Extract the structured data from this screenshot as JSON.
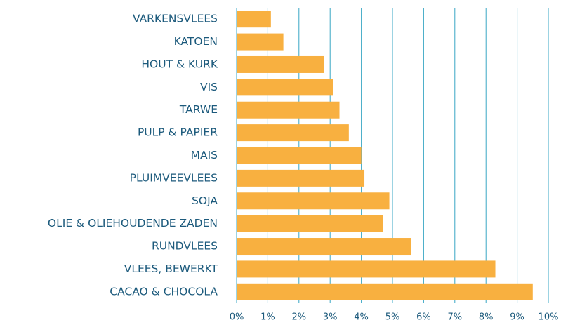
{
  "chart_data": {
    "type": "barh",
    "categories": [
      "VARKENSVLEES",
      "KATOEN",
      "HOUT & KURK",
      "VIS",
      "TARWE",
      "PULP & PAPIER",
      "MAIS",
      "PLUIMVEEVLEES",
      "SOJA",
      "OLIE & OLIEHOUDENDE ZADEN",
      "RUNDVLEES",
      "VLEES, BEWERKT",
      "CACAO & CHOCOLA"
    ],
    "values": [
      1.1,
      1.5,
      2.8,
      3.1,
      3.3,
      3.6,
      4.0,
      4.1,
      4.9,
      4.7,
      5.6,
      8.3,
      9.5
    ],
    "color": "#f8b040",
    "xlim": [
      0,
      10
    ],
    "xticks": [
      {
        "value": 0,
        "label": "0%"
      },
      {
        "value": 1,
        "label": "1%"
      },
      {
        "value": 2,
        "label": "2%"
      },
      {
        "value": 3,
        "label": "3%"
      },
      {
        "value": 4,
        "label": "4%"
      },
      {
        "value": 5,
        "label": "5%"
      },
      {
        "value": 6,
        "label": "6%"
      },
      {
        "value": 7,
        "label": "7%"
      },
      {
        "value": 8,
        "label": "8%"
      },
      {
        "value": 9,
        "label": "9%"
      },
      {
        "value": 10,
        "label": "10%"
      }
    ],
    "grid": true,
    "grid_color": "#3aa7c4"
  }
}
